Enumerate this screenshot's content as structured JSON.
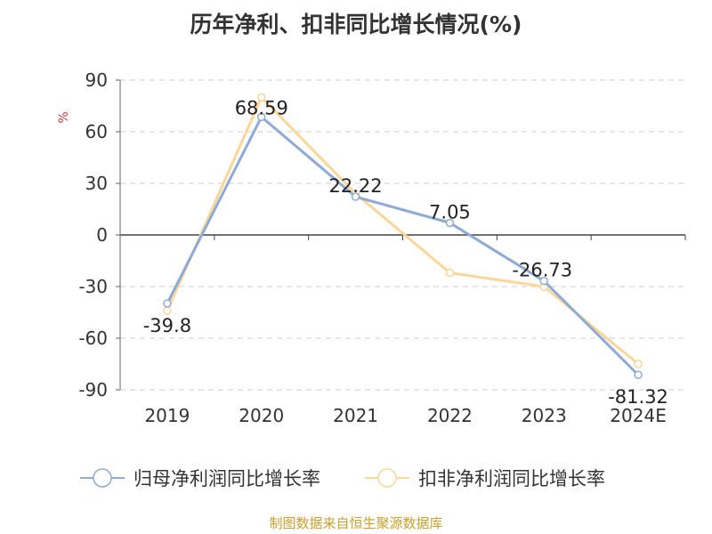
{
  "footer": "制图数据来自恒生聚源数据库",
  "chart_data": {
    "type": "line",
    "title": "历年净利、扣非同比增长情况(%)",
    "ylabel": "%",
    "xlabel": "",
    "categories": [
      "2019",
      "2020",
      "2021",
      "2022",
      "2023",
      "2024E"
    ],
    "ylim": [
      -90,
      90
    ],
    "yticks": [
      "90",
      "60",
      "30",
      "0",
      "-30",
      "-60",
      "-90"
    ],
    "grid": true,
    "legend_position": "bottom",
    "series": [
      {
        "name": "归母净利润同比增长率",
        "color": "#8eaad6",
        "values": [
          -39.8,
          68.59,
          22.22,
          7.05,
          -26.73,
          -81.32
        ],
        "labels": [
          "-39.8",
          "68.59",
          "22.22",
          "7.05",
          "-26.73",
          "-81.32"
        ]
      },
      {
        "name": "扣非净利润同比增长率",
        "color": "#fcd699",
        "values": [
          -44,
          80,
          24,
          -22,
          -30,
          -75
        ]
      }
    ]
  }
}
